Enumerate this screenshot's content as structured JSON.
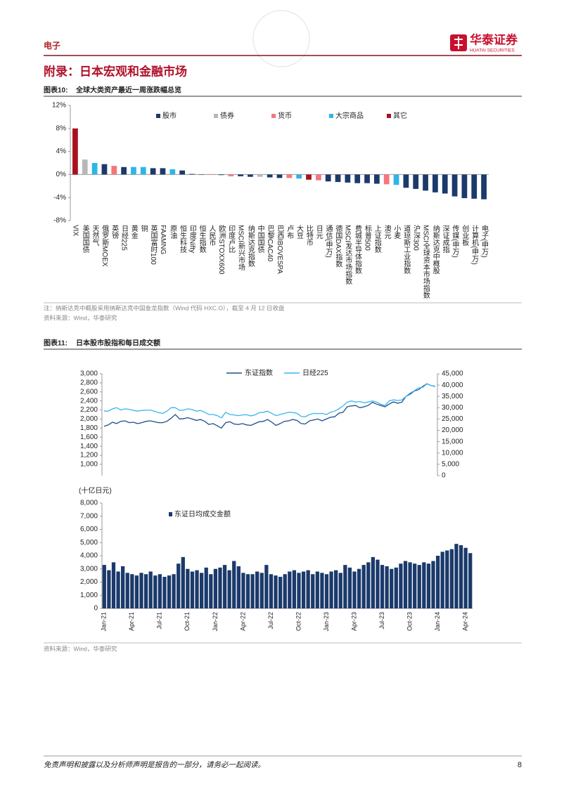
{
  "header": {
    "section": "电子",
    "brand": "华泰证券",
    "brand_en": "HUATAI SECURITIES"
  },
  "heading": "附录：日本宏观和金融市场",
  "figures": [
    {
      "label": "图表10:",
      "title": "全球大类资产最近一周涨跌幅总览",
      "chart_data": {
        "type": "bar",
        "categories": [
          "VIX",
          "美国国债",
          "天然气",
          "俄罗斯MOEX",
          "英镑",
          "日经225",
          "黄金",
          "铜",
          "英国富时100",
          "FAAMNG",
          "原油",
          "恒生科技",
          "印度Nifty",
          "恒生指数",
          "人民币",
          "欧洲STOXX600",
          "印度卢比",
          "MSCI新兴市场",
          "纳斯达克指数",
          "中国国债",
          "巴黎CAC40",
          "巴西IBOVESPA",
          "卢布",
          "大豆",
          "比特币",
          "日元",
          "通信(申万)",
          "德国DAX指数",
          "MSCI发达市场指数",
          "费城半导体指数",
          "标普500",
          "上证指数",
          "澳元",
          "小麦",
          "道琼斯工业指数",
          "沪深300",
          "MSCI全球资本市场指数",
          "纳斯达克中概股",
          "深证成指",
          "传媒(申万)",
          "创业板",
          "计算机(申万)",
          "电子(申万)"
        ],
        "values": [
          8.0,
          2.6,
          2.0,
          1.8,
          1.5,
          1.3,
          1.3,
          1.3,
          1.1,
          1.1,
          0.9,
          0.7,
          0.1,
          0.05,
          0.0,
          -0.1,
          -0.3,
          -0.3,
          -0.4,
          -0.4,
          -0.5,
          -0.6,
          -0.6,
          -0.7,
          -0.9,
          -1.0,
          -1.2,
          -1.3,
          -1.4,
          -1.5,
          -1.5,
          -1.6,
          -1.7,
          -1.8,
          -2.3,
          -2.5,
          -2.8,
          -3.1,
          -3.3,
          -3.8,
          -4.1,
          -4.2,
          -4.3
        ],
        "colors": [
          "#a8121e",
          "#b8b8b8",
          "#2fb5e8",
          "#1b3a6b",
          "#f4777c",
          "#1b3a6b",
          "#2fb5e8",
          "#2fb5e8",
          "#1b3a6b",
          "#1b3a6b",
          "#2fb5e8",
          "#1b3a6b",
          "#1b3a6b",
          "#1b3a6b",
          "#f4777c",
          "#1b3a6b",
          "#f4777c",
          "#1b3a6b",
          "#1b3a6b",
          "#b8b8b8",
          "#1b3a6b",
          "#1b3a6b",
          "#f4777c",
          "#2fb5e8",
          "#a8121e",
          "#f4777c",
          "#1b3a6b",
          "#1b3a6b",
          "#1b3a6b",
          "#1b3a6b",
          "#1b3a6b",
          "#1b3a6b",
          "#f4777c",
          "#2fb5e8",
          "#1b3a6b",
          "#1b3a6b",
          "#1b3a6b",
          "#1b3a6b",
          "#1b3a6b",
          "#1b3a6b",
          "#1b3a6b",
          "#1b3a6b",
          "#1b3a6b"
        ],
        "legend": [
          {
            "name": "股市",
            "color": "#1b3a6b"
          },
          {
            "name": "债券",
            "color": "#b8b8b8"
          },
          {
            "name": "货币",
            "color": "#f4777c"
          },
          {
            "name": "大宗商品",
            "color": "#2fb5e8"
          },
          {
            "name": "其它",
            "color": "#a8121e"
          }
        ],
        "ylim": [
          -8,
          12
        ],
        "yticks": [
          {
            "value": 12,
            "label": "12%"
          },
          {
            "value": 8,
            "label": "8%"
          },
          {
            "value": 4,
            "label": "4%"
          },
          {
            "value": 0,
            "label": "0%"
          },
          {
            "value": -4,
            "label": "-4%"
          },
          {
            "value": -8,
            "label": "-8%"
          }
        ]
      },
      "notes": [
        "注：纳斯达克中概股采用纳斯达克中国金龙指数（Wind 代码 HXC.O），截至 4 月 12 日收盘",
        "资料来源：Wind，华泰研究"
      ]
    },
    {
      "label": "图表11:",
      "title": "日本股市股指和每日成交额",
      "chart_data": [
        {
          "type": "line",
          "series": [
            {
              "name": "东证指数",
              "color": "#1f4e8c",
              "axis": "y",
              "values": [
                1840,
                1870,
                1930,
                1900,
                1950,
                1960,
                1920,
                1930,
                1900,
                1920,
                1950,
                1960,
                1940,
                1920,
                1920,
                1950,
                2020,
                2100,
                2000,
                2010,
                2030,
                2000,
                1970,
                1990,
                1950,
                1880,
                1900,
                1850,
                1800,
                1920,
                1940,
                1890,
                1880,
                1900,
                1870,
                1860,
                1900,
                1940,
                1950,
                1990,
                1930,
                1860,
                1900,
                1950,
                1960,
                1990,
                1970,
                1900,
                1890,
                1960,
                1980,
                2000,
                1960,
                2000,
                2040,
                2050,
                2130,
                2150,
                2270,
                2290,
                2300,
                2250,
                2270,
                2300,
                2370,
                2330,
                2300,
                2270,
                2330,
                2380,
                2350,
                2370,
                2500,
                2550,
                2620,
                2650,
                2720,
                2780,
                2740,
                2720
              ]
            },
            {
              "name": "日经225",
              "color": "#38b6f0",
              "axis": "y2",
              "values": [
                28500,
                28500,
                29500,
                30000,
                29000,
                29500,
                29300,
                28800,
                28500,
                28800,
                28900,
                29000,
                28500,
                27800,
                27500,
                28500,
                30000,
                30000,
                28800,
                29000,
                29500,
                29200,
                28500,
                28800,
                28000,
                27000,
                27000,
                26500,
                25500,
                28000,
                27000,
                26800,
                26500,
                26800,
                26900,
                26400,
                26800,
                27800,
                28000,
                28500,
                27500,
                26500,
                27000,
                27500,
                28000,
                27900,
                27500,
                26200,
                26000,
                27000,
                27500,
                27400,
                27500,
                27000,
                28000,
                28500,
                29500,
                30800,
                32500,
                33000,
                32500,
                32700,
                32200,
                32500,
                33000,
                32500,
                31500,
                31000,
                33000,
                33500,
                33200,
                33400,
                35000,
                36500,
                37500,
                38800,
                39000,
                40500,
                39800,
                39500
              ]
            }
          ],
          "ylim": [
            750,
            3000
          ],
          "yticks": [
            {
              "value": 1000,
              "label": "1,000"
            },
            {
              "value": 1200,
              "label": "1,200"
            },
            {
              "value": 1400,
              "label": "1,400"
            },
            {
              "value": 1600,
              "label": "1,600"
            },
            {
              "value": 1800,
              "label": "1,800"
            },
            {
              "value": 2000,
              "label": "2,000"
            },
            {
              "value": 2200,
              "label": "2,200"
            },
            {
              "value": 2400,
              "label": "2,400"
            },
            {
              "value": 2600,
              "label": "2,600"
            },
            {
              "value": 2800,
              "label": "2,800"
            },
            {
              "value": 3000,
              "label": "3,000"
            }
          ],
          "y2lim": [
            0,
            45000
          ],
          "y2ticks": [
            0,
            {
              "value": 5000,
              "label": "5,000"
            },
            {
              "value": 10000,
              "label": "10,000"
            },
            {
              "value": 15000,
              "label": "15,000"
            },
            {
              "value": 20000,
              "label": "20,000"
            },
            {
              "value": 25000,
              "label": "25,000"
            },
            {
              "value": 30000,
              "label": "30,000"
            },
            {
              "value": 35000,
              "label": "35,000"
            },
            {
              "value": 40000,
              "label": "40,000"
            },
            {
              "value": 45000,
              "label": "45,000"
            }
          ]
        },
        {
          "type": "bar",
          "ylabel": "(十亿日元)",
          "categories": [
            "Jan-21",
            null,
            null,
            null,
            null,
            null,
            "Apr-21",
            null,
            null,
            null,
            null,
            null,
            "Jul-21",
            null,
            null,
            null,
            null,
            null,
            "Oct-21",
            null,
            null,
            null,
            null,
            null,
            "Jan-22",
            null,
            null,
            null,
            null,
            null,
            "Apr-22",
            null,
            null,
            null,
            null,
            null,
            "Jul-22",
            null,
            null,
            null,
            null,
            null,
            "Oct-22",
            null,
            null,
            null,
            null,
            null,
            "Jan-23",
            null,
            null,
            null,
            null,
            null,
            "Apr-23",
            null,
            null,
            null,
            null,
            null,
            "Jul-23",
            null,
            null,
            null,
            null,
            null,
            "Oct-23",
            null,
            null,
            null,
            null,
            null,
            "Jan-24",
            null,
            null,
            null,
            null,
            null,
            "Apr-24",
            null
          ],
          "series": [
            {
              "name": "东证日均成交金额",
              "color": "#1b3a6b",
              "values": [
                3300,
                2900,
                3500,
                2800,
                3200,
                2700,
                2600,
                2500,
                2700,
                2600,
                2800,
                2500,
                2600,
                2400,
                2500,
                2600,
                3400,
                3900,
                3000,
                2800,
                2900,
                2700,
                3100,
                2600,
                3000,
                3100,
                3300,
                2900,
                3600,
                3200,
                2700,
                2600,
                2600,
                2800,
                2700,
                3300,
                2600,
                2500,
                2400,
                2600,
                2800,
                2900,
                2700,
                2800,
                2900,
                2600,
                2800,
                2700,
                2600,
                2800,
                2900,
                2700,
                3300,
                3100,
                2800,
                3000,
                3300,
                3500,
                3900,
                3700,
                3300,
                3200,
                3000,
                3100,
                3400,
                3600,
                3500,
                3400,
                3300,
                3500,
                3400,
                3600,
                4000,
                4300,
                4400,
                4500,
                4900,
                4800,
                4600,
                4200
              ]
            }
          ],
          "ylim": [
            0,
            8000
          ],
          "yticks": [
            0,
            {
              "value": 1000,
              "label": "1,000"
            },
            {
              "value": 2000,
              "label": "2,000"
            },
            {
              "value": 3000,
              "label": "3,000"
            },
            {
              "value": 4000,
              "label": "4,000"
            },
            {
              "value": 5000,
              "label": "5,000"
            },
            {
              "value": 6000,
              "label": "6,000"
            },
            {
              "value": 7000,
              "label": "7,000"
            },
            {
              "value": 8000,
              "label": "8,000"
            }
          ]
        }
      ],
      "notes": [
        "资料来源：Wind，华泰研究"
      ]
    }
  ],
  "footer": {
    "disclaimer": "免责声明和披露以及分析师声明是报告的一部分，请务必一起阅读。",
    "page": "8"
  }
}
